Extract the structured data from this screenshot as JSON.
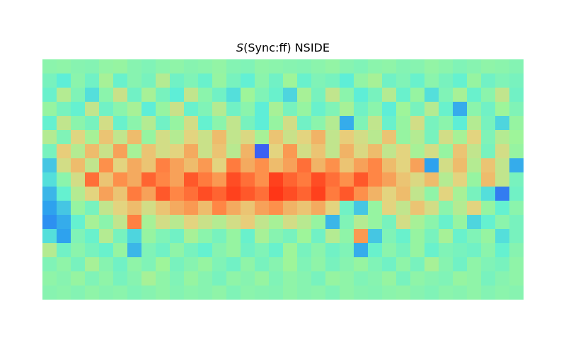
{
  "chart_data": {
    "type": "heatmap",
    "title_symbol": "S",
    "title_rest": "(Sync:ff) NSIDE",
    "projection": "healpix-cartesian",
    "colormap": "rainbow",
    "colorscale": [
      "#4b2cf5",
      "#2a9bf0",
      "#5ff0d6",
      "#9ef59a",
      "#e6d37e",
      "#ff8a47",
      "#ff2a10"
    ],
    "grid": false,
    "value_range": [
      0,
      1
    ],
    "rows": 17,
    "cols": 34,
    "values": [
      [
        0.45,
        0.46,
        0.44,
        0.43,
        0.47,
        0.48,
        0.44,
        0.42,
        0.45,
        0.46,
        0.44,
        0.45,
        0.47,
        0.43,
        0.42,
        0.46,
        0.45,
        0.44,
        0.43,
        0.45,
        0.47,
        0.44,
        0.42,
        0.45,
        0.46,
        0.43,
        0.44,
        0.47,
        0.45,
        0.42,
        0.44,
        0.46,
        0.45,
        0.43
      ],
      [
        0.4,
        0.33,
        0.45,
        0.38,
        0.52,
        0.36,
        0.44,
        0.4,
        0.55,
        0.38,
        0.42,
        0.36,
        0.48,
        0.4,
        0.34,
        0.45,
        0.38,
        0.5,
        0.36,
        0.42,
        0.4,
        0.33,
        0.47,
        0.52,
        0.38,
        0.42,
        0.36,
        0.45,
        0.4,
        0.35,
        0.48,
        0.38,
        0.42,
        0.4
      ],
      [
        0.36,
        0.55,
        0.42,
        0.3,
        0.45,
        0.6,
        0.38,
        0.52,
        0.4,
        0.33,
        0.58,
        0.45,
        0.38,
        0.3,
        0.5,
        0.42,
        0.36,
        0.28,
        0.52,
        0.4,
        0.58,
        0.45,
        0.33,
        0.4,
        0.55,
        0.36,
        0.48,
        0.3,
        0.42,
        0.52,
        0.36,
        0.45,
        0.58,
        0.38
      ],
      [
        0.48,
        0.4,
        0.35,
        0.58,
        0.38,
        0.45,
        0.52,
        0.33,
        0.48,
        0.6,
        0.36,
        0.42,
        0.55,
        0.38,
        0.45,
        0.33,
        0.52,
        0.4,
        0.48,
        0.36,
        0.42,
        0.52,
        0.38,
        0.45,
        0.33,
        0.5,
        0.4,
        0.55,
        0.36,
        0.2,
        0.45,
        0.38,
        0.5,
        0.42
      ],
      [
        0.35,
        0.58,
        0.45,
        0.4,
        0.62,
        0.36,
        0.45,
        0.55,
        0.38,
        0.48,
        0.62,
        0.35,
        0.45,
        0.58,
        0.4,
        0.33,
        0.48,
        0.62,
        0.38,
        0.45,
        0.55,
        0.2,
        0.42,
        0.58,
        0.36,
        0.48,
        0.62,
        0.4,
        0.45,
        0.33,
        0.55,
        0.4,
        0.28,
        0.48
      ],
      [
        0.55,
        0.42,
        0.65,
        0.52,
        0.7,
        0.58,
        0.72,
        0.48,
        0.62,
        0.55,
        0.66,
        0.6,
        0.72,
        0.58,
        0.64,
        0.52,
        0.7,
        0.6,
        0.66,
        0.74,
        0.58,
        0.68,
        0.62,
        0.56,
        0.7,
        0.48,
        0.55,
        0.4,
        0.62,
        0.52,
        0.66,
        0.42,
        0.55,
        0.5
      ],
      [
        0.4,
        0.68,
        0.55,
        0.72,
        0.6,
        0.78,
        0.52,
        0.7,
        0.62,
        0.66,
        0.76,
        0.6,
        0.7,
        0.56,
        0.74,
        0.08,
        0.66,
        0.8,
        0.62,
        0.7,
        0.58,
        0.74,
        0.64,
        0.72,
        0.58,
        0.66,
        0.52,
        0.62,
        0.48,
        0.7,
        0.58,
        0.4,
        0.62,
        0.48
      ],
      [
        0.25,
        0.62,
        0.72,
        0.58,
        0.82,
        0.66,
        0.76,
        0.7,
        0.85,
        0.78,
        0.72,
        0.8,
        0.66,
        0.86,
        0.76,
        0.82,
        0.72,
        0.78,
        0.88,
        0.74,
        0.82,
        0.7,
        0.78,
        0.84,
        0.72,
        0.66,
        0.78,
        0.18,
        0.62,
        0.72,
        0.55,
        0.7,
        0.58,
        0.2
      ],
      [
        0.3,
        0.45,
        0.62,
        0.88,
        0.7,
        0.82,
        0.76,
        0.9,
        0.84,
        0.78,
        0.92,
        0.86,
        0.8,
        0.94,
        0.88,
        0.82,
        0.96,
        0.9,
        0.86,
        0.94,
        0.88,
        0.82,
        0.92,
        0.84,
        0.78,
        0.7,
        0.64,
        0.72,
        0.55,
        0.66,
        0.48,
        0.72,
        0.58,
        0.4
      ],
      [
        0.22,
        0.35,
        0.55,
        0.66,
        0.78,
        0.7,
        0.86,
        0.78,
        0.92,
        0.84,
        0.88,
        0.94,
        0.9,
        0.96,
        0.92,
        0.88,
        0.98,
        0.94,
        0.9,
        0.96,
        0.86,
        0.92,
        0.82,
        0.74,
        0.66,
        0.72,
        0.58,
        0.46,
        0.66,
        0.52,
        0.4,
        0.3,
        0.12,
        0.38
      ],
      [
        0.18,
        0.25,
        0.48,
        0.4,
        0.58,
        0.66,
        0.72,
        0.62,
        0.7,
        0.76,
        0.8,
        0.72,
        0.84,
        0.76,
        0.7,
        0.78,
        0.82,
        0.74,
        0.7,
        0.76,
        0.66,
        0.38,
        0.25,
        0.48,
        0.66,
        0.58,
        0.7,
        0.62,
        0.45,
        0.55,
        0.66,
        0.48,
        0.35,
        0.45
      ],
      [
        0.15,
        0.2,
        0.35,
        0.52,
        0.45,
        0.58,
        0.85,
        0.52,
        0.62,
        0.56,
        0.66,
        0.6,
        0.55,
        0.62,
        0.68,
        0.58,
        0.52,
        0.62,
        0.56,
        0.48,
        0.22,
        0.42,
        0.55,
        0.48,
        0.4,
        0.62,
        0.52,
        0.45,
        0.36,
        0.48,
        0.28,
        0.35,
        0.45,
        0.4
      ],
      [
        0.3,
        0.18,
        0.42,
        0.36,
        0.55,
        0.4,
        0.28,
        0.48,
        0.42,
        0.38,
        0.52,
        0.45,
        0.4,
        0.48,
        0.36,
        0.52,
        0.44,
        0.4,
        0.5,
        0.38,
        0.55,
        0.46,
        0.8,
        0.25,
        0.42,
        0.36,
        0.48,
        0.4,
        0.52,
        0.36,
        0.42,
        0.48,
        0.3,
        0.4
      ],
      [
        0.55,
        0.38,
        0.45,
        0.4,
        0.36,
        0.48,
        0.22,
        0.42,
        0.38,
        0.46,
        0.4,
        0.35,
        0.44,
        0.48,
        0.38,
        0.42,
        0.36,
        0.5,
        0.4,
        0.45,
        0.38,
        0.42,
        0.2,
        0.36,
        0.45,
        0.4,
        0.48,
        0.36,
        0.42,
        0.4,
        0.38,
        0.45,
        0.35,
        0.44
      ],
      [
        0.42,
        0.46,
        0.4,
        0.52,
        0.44,
        0.38,
        0.46,
        0.42,
        0.5,
        0.4,
        0.44,
        0.48,
        0.42,
        0.38,
        0.46,
        0.4,
        0.44,
        0.5,
        0.42,
        0.46,
        0.4,
        0.44,
        0.48,
        0.42,
        0.38,
        0.46,
        0.4,
        0.52,
        0.44,
        0.38,
        0.46,
        0.42,
        0.4,
        0.46
      ],
      [
        0.46,
        0.44,
        0.48,
        0.42,
        0.46,
        0.4,
        0.44,
        0.52,
        0.46,
        0.42,
        0.48,
        0.44,
        0.4,
        0.46,
        0.44,
        0.48,
        0.42,
        0.46,
        0.44,
        0.4,
        0.48,
        0.46,
        0.42,
        0.44,
        0.48,
        0.4,
        0.46,
        0.44,
        0.42,
        0.48,
        0.46,
        0.4,
        0.44,
        0.46
      ],
      [
        0.44,
        0.45,
        0.43,
        0.46,
        0.44,
        0.45,
        0.42,
        0.44,
        0.46,
        0.43,
        0.45,
        0.44,
        0.46,
        0.42,
        0.45,
        0.44,
        0.43,
        0.46,
        0.44,
        0.45,
        0.42,
        0.46,
        0.44,
        0.43,
        0.45,
        0.46,
        0.44,
        0.42,
        0.45,
        0.44,
        0.46,
        0.43,
        0.45,
        0.44
      ]
    ]
  }
}
